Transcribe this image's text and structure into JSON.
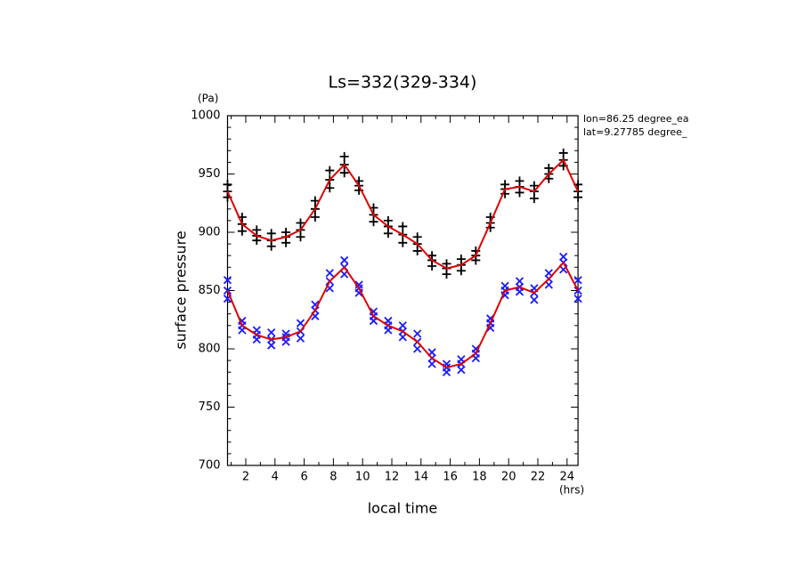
{
  "chart_data": {
    "type": "line",
    "title": "Ls=332(329-334)",
    "x_label": "local time",
    "x_unit": "(hrs)",
    "y_label": "surface pressure",
    "y_unit": "(Pa)",
    "annotations": [
      "lon=86.25 degree_ea",
      "lat=9.27785 degree_"
    ],
    "xlim": [
      0.75,
      24.75
    ],
    "ylim": [
      700,
      1000
    ],
    "xticks": [
      2,
      4,
      6,
      8,
      10,
      12,
      14,
      16,
      18,
      20,
      22,
      24
    ],
    "xminor_ticks": [
      1,
      3,
      5,
      7,
      9,
      11,
      13,
      15,
      17,
      19,
      21,
      23
    ],
    "yticks": [
      700,
      750,
      800,
      850,
      900,
      950,
      1000
    ],
    "yminor_ticks": [
      710,
      720,
      730,
      740,
      760,
      770,
      780,
      790,
      810,
      820,
      830,
      840,
      860,
      870,
      880,
      890,
      910,
      920,
      930,
      940,
      960,
      970,
      980,
      990
    ],
    "x": [
      0.75,
      1.75,
      2.75,
      3.75,
      4.75,
      5.75,
      6.75,
      7.75,
      8.75,
      9.75,
      10.75,
      11.75,
      12.75,
      13.75,
      14.75,
      15.75,
      16.75,
      17.75,
      18.75,
      19.75,
      20.75,
      21.75,
      22.75,
      23.75,
      24.75
    ],
    "series": [
      {
        "color": "#000000",
        "marker": "+",
        "values": [
          935,
          907,
          897,
          893,
          896,
          902,
          920,
          945,
          958,
          940,
          915,
          905,
          898,
          890,
          876,
          869,
          872,
          880,
          908,
          937,
          939,
          935,
          950,
          962,
          935
        ],
        "spread": [
          [
            941,
            913,
            902,
            899,
            900,
            908,
            927,
            953,
            965,
            944,
            921,
            910,
            905,
            896,
            880,
            873,
            877,
            884,
            913,
            941,
            944,
            940,
            955,
            968,
            941
          ],
          [
            930,
            901,
            893,
            888,
            891,
            896,
            913,
            938,
            951,
            936,
            909,
            899,
            891,
            884,
            871,
            864,
            867,
            876,
            904,
            933,
            934,
            929,
            946,
            957,
            930
          ]
        ]
      },
      {
        "color": "#1a1aff",
        "marker": "x",
        "values": [
          850,
          820,
          812,
          808,
          810,
          815,
          833,
          858,
          870,
          852,
          828,
          820,
          815,
          806,
          792,
          784,
          787,
          796,
          822,
          850,
          853,
          848,
          860,
          874,
          850
        ],
        "spread": [
          [
            859,
            824,
            816,
            814,
            813,
            822,
            838,
            865,
            876,
            855,
            832,
            824,
            820,
            813,
            797,
            787,
            791,
            800,
            826,
            854,
            858,
            852,
            865,
            879,
            859
          ],
          [
            843,
            816,
            808,
            803,
            806,
            809,
            828,
            852,
            864,
            848,
            824,
            816,
            810,
            800,
            787,
            780,
            782,
            792,
            818,
            846,
            849,
            842,
            855,
            868,
            843
          ]
        ]
      }
    ],
    "line_color": "#e00000"
  }
}
